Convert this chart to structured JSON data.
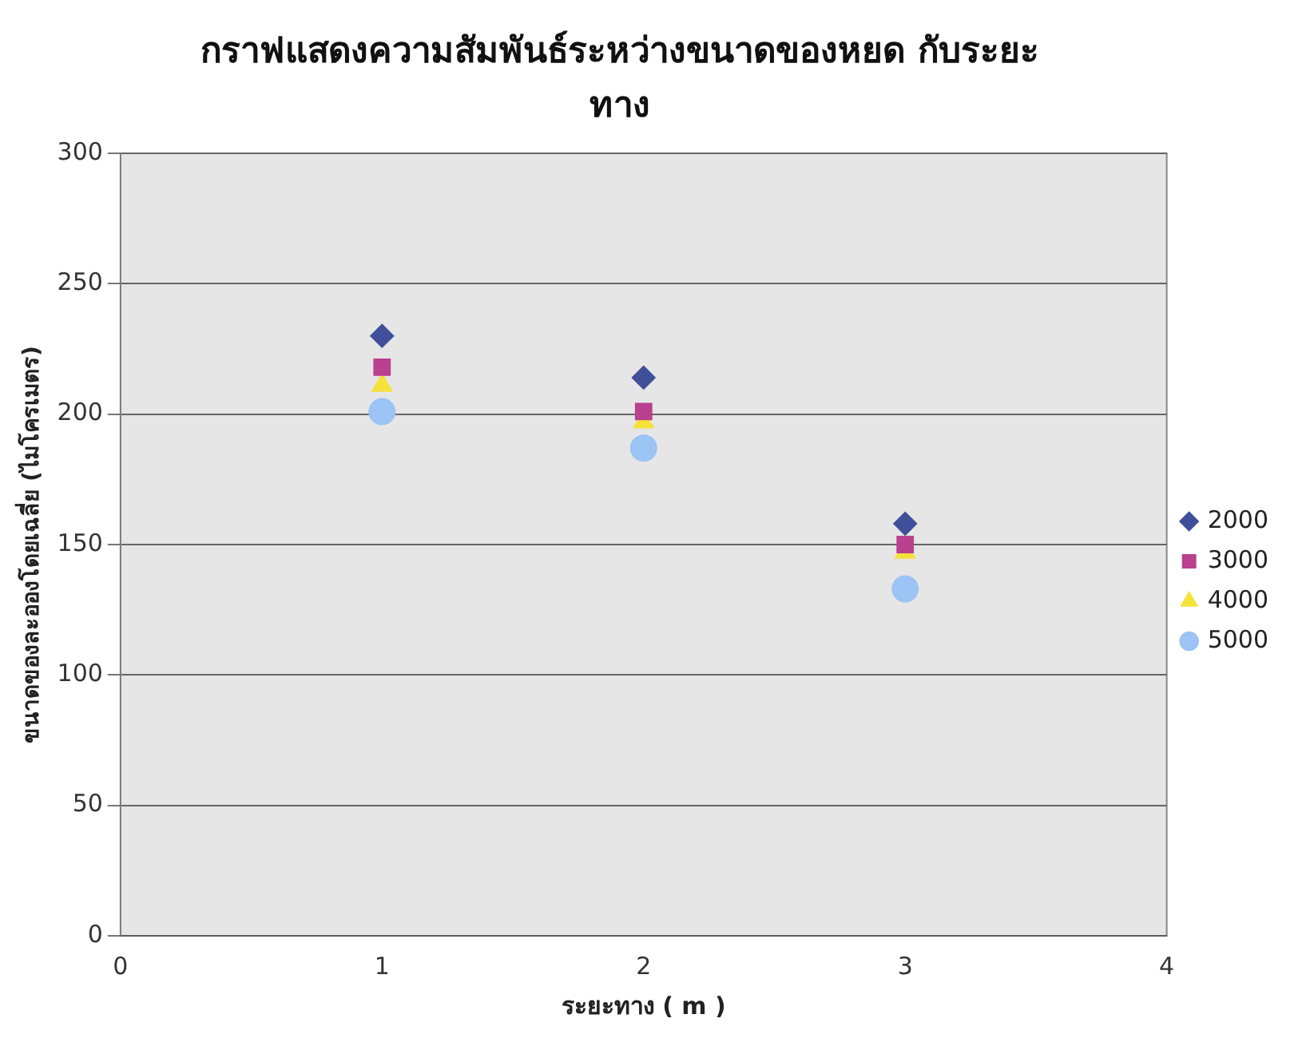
{
  "chart_data": {
    "type": "scatter",
    "title": "กราฟแสดงความสัมพันธ์ระหว่างขนาดของหยด กับระยะทาง",
    "xlabel": "ระยะทาง ( m )",
    "ylabel": "ขนาดของละอองโดยเฉลี่ย (ไมโครเมตร)",
    "x": [
      1,
      2,
      3
    ],
    "series": [
      {
        "name": "2000",
        "color": "#3f4f9a",
        "marker": "diamond",
        "values": [
          230,
          214,
          158
        ]
      },
      {
        "name": "3000",
        "color": "#b9418f",
        "marker": "square",
        "values": [
          218,
          201,
          150
        ]
      },
      {
        "name": "4000",
        "color": "#f5e23a",
        "marker": "triangle",
        "values": [
          211,
          197,
          147
        ]
      },
      {
        "name": "5000",
        "color": "#9cc4f5",
        "marker": "circle",
        "values": [
          201,
          187,
          133
        ]
      }
    ],
    "xlim": [
      0,
      4
    ],
    "xticks": [
      0,
      1,
      2,
      3,
      4
    ],
    "ylim": [
      0,
      300
    ],
    "yticks": [
      0,
      50,
      100,
      150,
      200,
      250,
      300
    ],
    "grid": "y",
    "legend": "right"
  }
}
